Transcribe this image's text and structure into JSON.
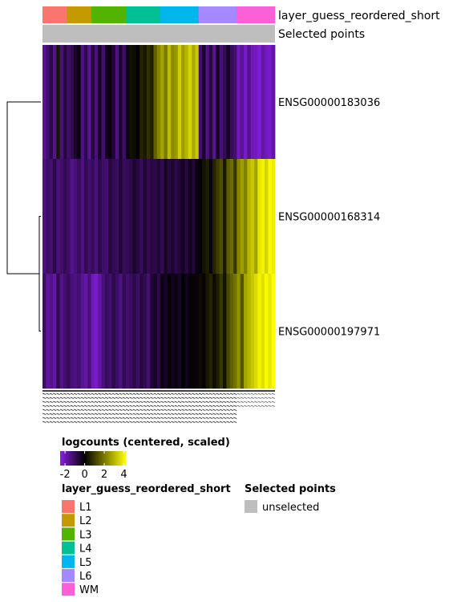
{
  "chart_data": {
    "type": "heatmap",
    "annotation_tracks": [
      {
        "label": "layer_guess_reordered_short",
        "categories": [
          "L1",
          "L2",
          "L3",
          "L4",
          "L5",
          "L6",
          "WM"
        ],
        "colors": [
          "#F8766D",
          "#C49A00",
          "#53B400",
          "#00C094",
          "#00B6EB",
          "#A58AFF",
          "#FB61D7"
        ],
        "column_counts": [
          7,
          7,
          10,
          10,
          11,
          11,
          11
        ]
      },
      {
        "label": "Selected points",
        "categories": [
          "unselected"
        ],
        "colors": [
          "#BEBEBE"
        ]
      }
    ],
    "rows": [
      "ENSG00000183036",
      "ENSG00000168314",
      "ENSG00000197971"
    ],
    "values": [
      [
        -1.6,
        -1.2,
        -0.8,
        -1.5,
        0.4,
        -1.3,
        -0.7,
        -1.1,
        -0.9,
        -0.5,
        -0.2,
        -1.4,
        -0.8,
        -1.6,
        -0.7,
        -1.3,
        -0.4,
        -1.2,
        -0.3,
        -0.2,
        -0.6,
        -1.4,
        -0.5,
        -1.1,
        -0.2,
        0.3,
        0.2,
        -0.1,
        0.6,
        0.4,
        0.8,
        0.5,
        1.6,
        2.2,
        2.7,
        2.0,
        3.1,
        2.3,
        2.5,
        3.4,
        2.6,
        3.0,
        3.5,
        2.8,
        3.3,
        -1.2,
        -0.5,
        -1.4,
        -0.7,
        -1.6,
        -0.4,
        -1.3,
        -0.9,
        -0.4,
        -1.0,
        -1.2,
        -2.0,
        -1.6,
        -2.2,
        -1.5,
        -2.0,
        -2.1,
        -2.3,
        -1.8,
        -2.0,
        -2.2,
        -1.8
      ],
      [
        -1.4,
        -1.1,
        -1.2,
        -0.8,
        -1.3,
        -1.2,
        -0.9,
        -1.1,
        -1.5,
        -1.3,
        -1.0,
        -1.4,
        -0.9,
        -1.2,
        -1.0,
        -1.3,
        -0.8,
        -1.1,
        -1.2,
        -0.7,
        -0.9,
        -1.0,
        -0.6,
        -1.0,
        -0.9,
        -0.8,
        -0.5,
        -0.7,
        -1.0,
        -0.6,
        -0.9,
        -0.7,
        -0.8,
        -0.6,
        -0.9,
        -0.4,
        -0.7,
        -0.5,
        -0.8,
        -0.6,
        -0.4,
        -0.7,
        -0.3,
        -0.6,
        -0.2,
        -0.1,
        0.3,
        0.5,
        -0.2,
        0.6,
        1.0,
        1.3,
        0.4,
        1.5,
        1.8,
        0.9,
        2.2,
        2.6,
        2.1,
        3.0,
        3.3,
        2.7,
        3.8,
        4.0,
        3.5,
        4.1,
        3.9
      ],
      [
        -1.1,
        -1.7,
        -1.5,
        -1.8,
        -0.9,
        -1.5,
        -1.2,
        -1.0,
        -1.3,
        -1.4,
        -1.2,
        -1.6,
        -1.8,
        -1.3,
        -2.0,
        -2.2,
        -1.8,
        -1.3,
        -1.0,
        -1.2,
        -0.8,
        -1.1,
        -1.4,
        -0.9,
        -1.2,
        -1.0,
        -0.8,
        -1.1,
        -0.7,
        -0.9,
        -1.2,
        -0.6,
        -0.4,
        -0.8,
        -0.2,
        -0.4,
        -0.1,
        -0.3,
        -0.2,
        -0.4,
        0.0,
        -0.3,
        -0.1,
        0.1,
        -0.2,
        0.2,
        -0.1,
        0.4,
        0.6,
        0.2,
        0.5,
        0.9,
        0.3,
        1.2,
        1.6,
        1.9,
        2.4,
        1.4,
        2.7,
        3.0,
        3.3,
        3.6,
        4.0,
        3.7,
        4.1,
        3.8,
        4.2
      ]
    ],
    "color_scale": {
      "title": "logcounts (centered, scaled)",
      "breaks": [
        -2,
        0,
        2,
        4
      ],
      "min": -2.5,
      "max": 4.2,
      "colors": [
        "#8A1FE6",
        "#000000",
        "#FFFF00"
      ]
    },
    "row_dendrogram": {
      "merges": [
        [
          "ENSG00000168314",
          "ENSG00000197971"
        ],
        [
          "ENSG00000183036",
          "cluster"
        ]
      ]
    },
    "column_labels_obscured": true
  },
  "legends": {
    "layer_title": "layer_guess_reordered_short",
    "selected_title": "Selected points",
    "selected_items": [
      "unselected"
    ]
  }
}
